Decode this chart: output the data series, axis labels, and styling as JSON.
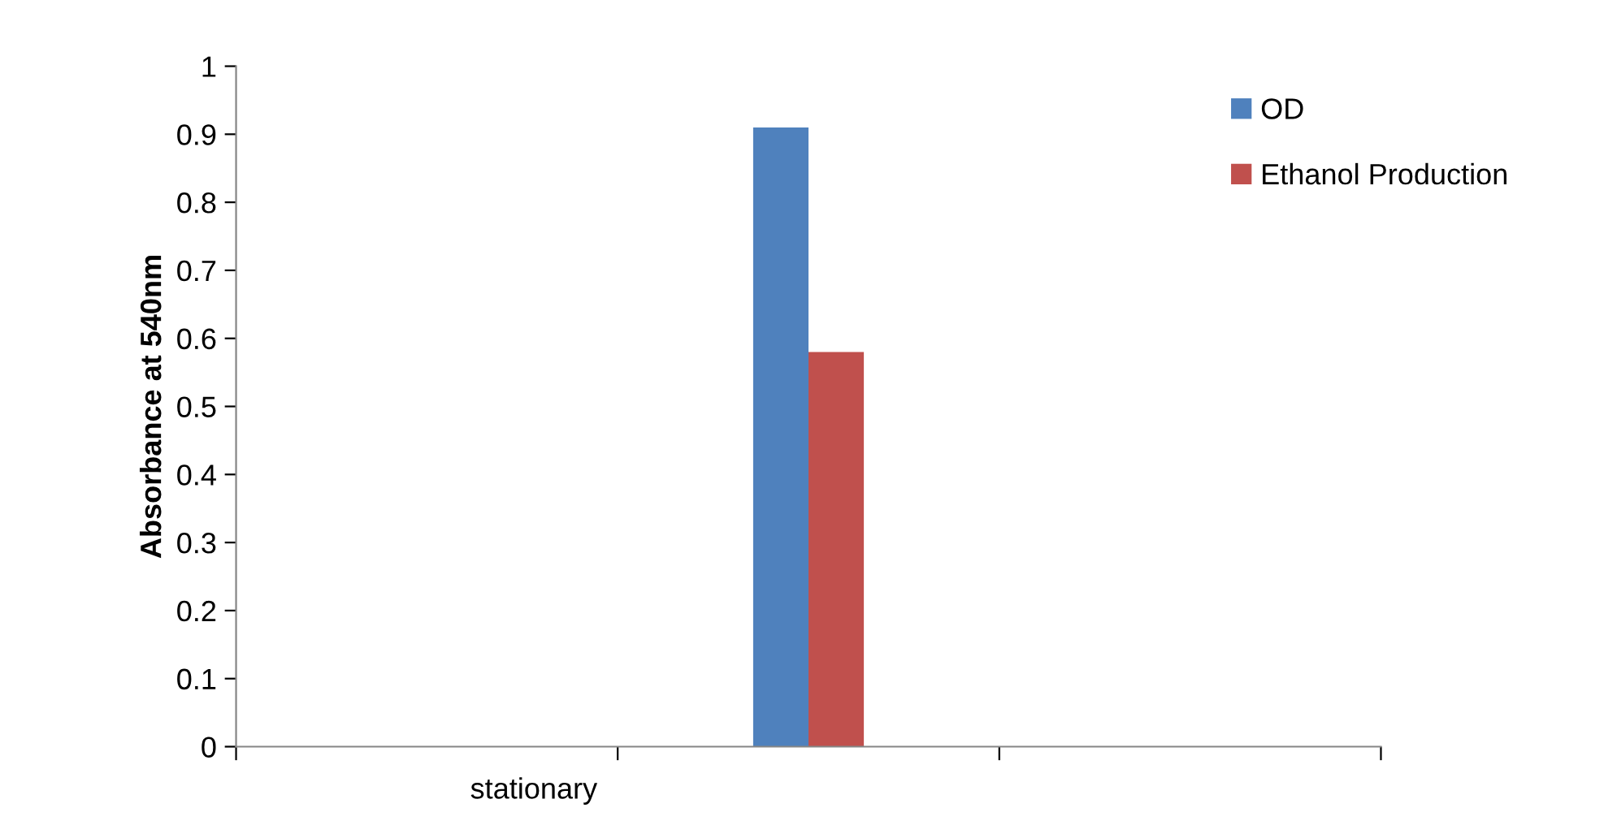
{
  "chart_data": {
    "type": "bar",
    "ylabel": "Absorbance at 540nm",
    "categories": [
      "stationary",
      null,
      null
    ],
    "series": [
      {
        "name": "OD",
        "color": "#4f81bd",
        "values": [
          null,
          0.91,
          null
        ]
      },
      {
        "name": "Ethanol Production",
        "color": "#c0504d",
        "values": [
          null,
          0.58,
          null
        ]
      }
    ],
    "ylim": [
      0,
      1
    ],
    "yticks": [
      0,
      0.1,
      0.2,
      0.3,
      0.4,
      0.5,
      0.6,
      0.7,
      0.8,
      0.9,
      1
    ],
    "grid": false,
    "legend": "right"
  }
}
